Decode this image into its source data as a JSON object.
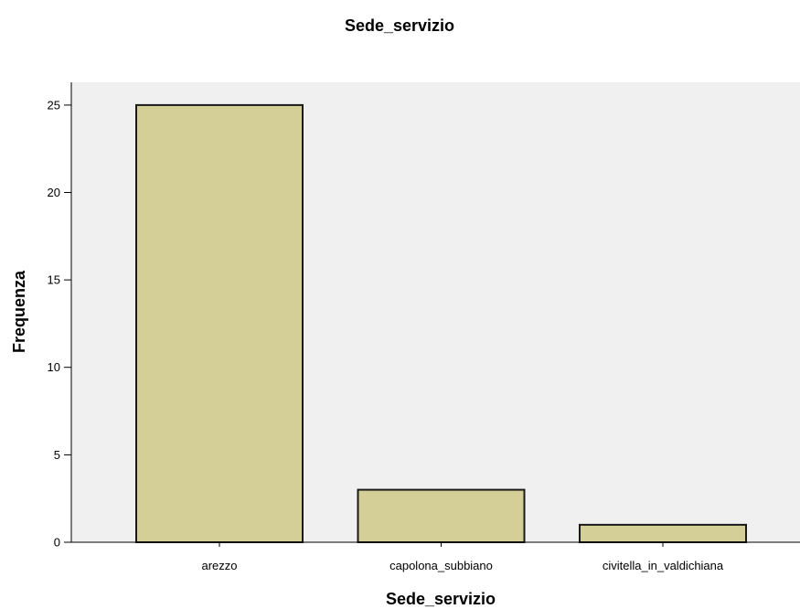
{
  "chart_data": {
    "type": "bar",
    "title": "Sede_servizio",
    "xlabel": "Sede_servizio",
    "ylabel": "Frequenza",
    "categories": [
      "arezzo",
      "capolona_subbiano",
      "civitella_in_valdichiana"
    ],
    "values": [
      25,
      3,
      1
    ],
    "ylim": [
      0,
      26.3
    ],
    "yticks": [
      0,
      5,
      10,
      15,
      20,
      25
    ],
    "grid": false,
    "legend": "none"
  },
  "colors": {
    "bar_fill": "#d4cf96",
    "bar_stroke": "#1a1a1a",
    "plot_background": "#f0f0f0",
    "axis": "#000000"
  }
}
